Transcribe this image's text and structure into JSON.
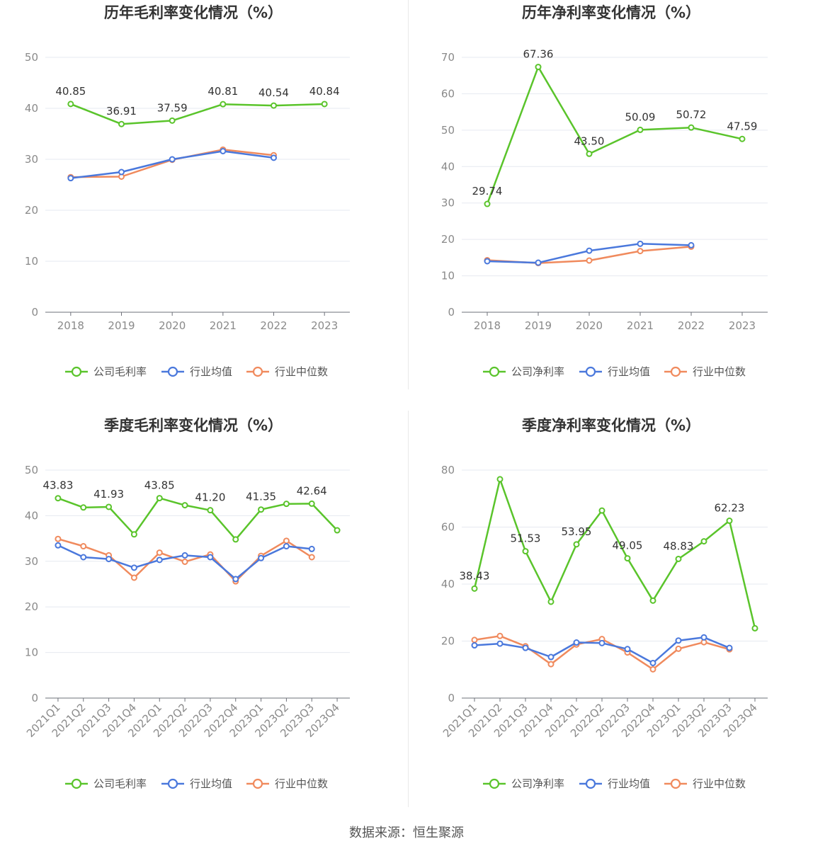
{
  "source_label": "数据来源：恒生聚源",
  "colors": {
    "company": "#5ac42b",
    "avg": "#4a78dc",
    "median": "#f08a5d"
  },
  "chart_data": [
    {
      "type": "line",
      "title": "历年毛利率变化情况（%）",
      "categories": [
        "2018",
        "2019",
        "2020",
        "2021",
        "2022",
        "2023"
      ],
      "ylim": [
        0,
        50
      ],
      "yticks": [
        0,
        10,
        20,
        30,
        40,
        50
      ],
      "grid": true,
      "legend_position": "bottom",
      "series": [
        {
          "name": "公司毛利率",
          "values": [
            40.85,
            36.91,
            37.59,
            40.81,
            40.54,
            40.84
          ],
          "labels": [
            "40.85",
            "36.91",
            "37.59",
            "40.81",
            "40.54",
            "40.84"
          ]
        },
        {
          "name": "行业均值",
          "values": [
            26.3,
            27.5,
            30.0,
            31.6,
            30.3,
            null
          ]
        },
        {
          "name": "行业中位数",
          "values": [
            26.5,
            26.6,
            29.9,
            31.9,
            30.8,
            null
          ]
        }
      ]
    },
    {
      "type": "line",
      "title": "历年净利率变化情况（%）",
      "categories": [
        "2018",
        "2019",
        "2020",
        "2021",
        "2022",
        "2023"
      ],
      "ylim": [
        0,
        70
      ],
      "yticks": [
        0,
        10,
        20,
        30,
        40,
        50,
        60,
        70
      ],
      "grid": true,
      "legend_position": "bottom",
      "series": [
        {
          "name": "公司净利率",
          "values": [
            29.74,
            67.36,
            43.5,
            50.09,
            50.72,
            47.59
          ],
          "labels": [
            "29.74",
            "67.36",
            "43.50",
            "50.09",
            "50.72",
            "47.59"
          ]
        },
        {
          "name": "行业均值",
          "values": [
            14.0,
            13.6,
            16.9,
            18.8,
            18.4,
            null
          ]
        },
        {
          "name": "行业中位数",
          "values": [
            14.3,
            13.5,
            14.2,
            16.8,
            18.0,
            null
          ]
        }
      ]
    },
    {
      "type": "line",
      "title": "季度毛利率变化情况（%）",
      "categories": [
        "2021Q1",
        "2021Q2",
        "2021Q3",
        "2021Q4",
        "2022Q1",
        "2022Q2",
        "2022Q3",
        "2022Q4",
        "2023Q1",
        "2023Q2",
        "2023Q3",
        "2023Q4"
      ],
      "ylim": [
        0,
        50
      ],
      "yticks": [
        0,
        10,
        20,
        30,
        40,
        50
      ],
      "grid": true,
      "legend_position": "bottom",
      "series": [
        {
          "name": "公司毛利率",
          "values": [
            43.83,
            41.8,
            41.93,
            35.9,
            43.85,
            42.3,
            41.2,
            34.8,
            41.35,
            42.6,
            42.64,
            36.8
          ],
          "labels": [
            "43.83",
            "",
            "41.93",
            "",
            "43.85",
            "",
            "41.20",
            "",
            "41.35",
            "",
            "42.64",
            ""
          ]
        },
        {
          "name": "行业均值",
          "values": [
            33.5,
            30.9,
            30.5,
            28.6,
            30.3,
            31.3,
            30.9,
            26.1,
            30.7,
            33.3,
            32.7,
            null
          ]
        },
        {
          "name": "行业中位数",
          "values": [
            34.9,
            33.3,
            31.3,
            26.4,
            31.9,
            29.9,
            31.5,
            25.6,
            31.2,
            34.5,
            30.9,
            null
          ]
        }
      ]
    },
    {
      "type": "line",
      "title": "季度净利率变化情况（%）",
      "categories": [
        "2021Q1",
        "2021Q2",
        "2021Q3",
        "2021Q4",
        "2022Q1",
        "2022Q2",
        "2022Q3",
        "2022Q4",
        "2023Q1",
        "2023Q2",
        "2023Q3",
        "2023Q4"
      ],
      "ylim": [
        0,
        80
      ],
      "yticks": [
        0,
        20,
        40,
        60,
        80
      ],
      "grid": true,
      "legend_position": "bottom",
      "series": [
        {
          "name": "公司净利率",
          "values": [
            38.43,
            76.8,
            51.53,
            33.8,
            53.95,
            65.8,
            49.05,
            34.2,
            48.83,
            55.0,
            62.23,
            24.5
          ],
          "labels": [
            "38.43",
            "",
            "51.53",
            "",
            "53.95",
            "",
            "49.05",
            "",
            "48.83",
            "",
            "62.23",
            ""
          ]
        },
        {
          "name": "行业均值",
          "values": [
            18.5,
            19.1,
            17.6,
            14.4,
            19.5,
            19.3,
            17.2,
            12.3,
            20.2,
            21.3,
            17.6,
            null
          ]
        },
        {
          "name": "行业中位数",
          "values": [
            20.4,
            21.8,
            18.2,
            11.9,
            18.8,
            20.7,
            16.0,
            10.1,
            17.3,
            19.6,
            17.1,
            null
          ]
        }
      ]
    }
  ]
}
